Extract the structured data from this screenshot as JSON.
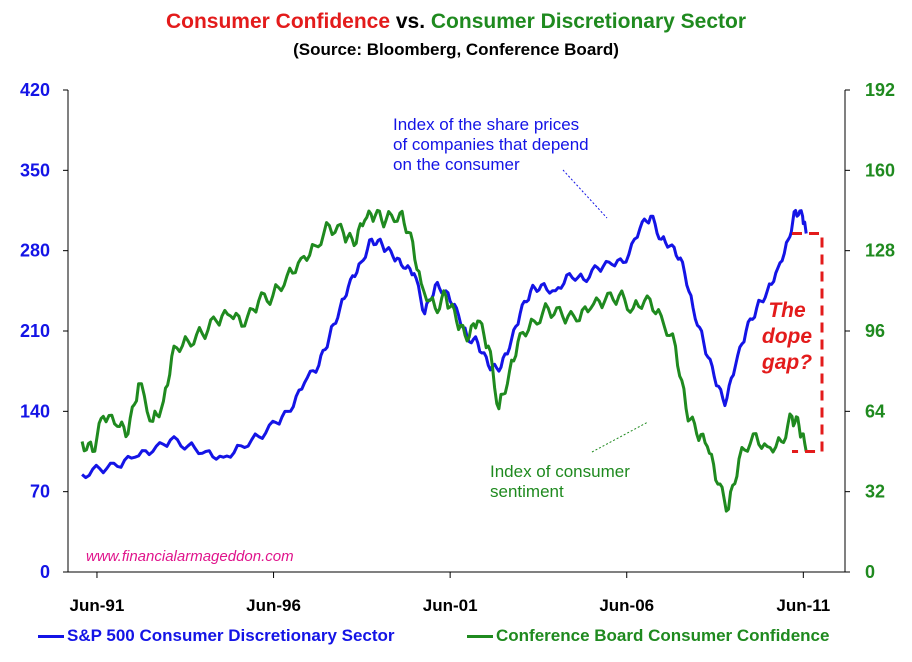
{
  "title": {
    "part1": "Consumer Confidence",
    "part2": " vs. ",
    "part3": "Consumer Discretionary Sector"
  },
  "subtitle": "(Source: Bloomberg, Conference Board)",
  "colors": {
    "blue": "#1414e6",
    "green": "#1f8a1f",
    "red": "#e31b1b",
    "pink": "#e0148c"
  },
  "annotations": {
    "blue_line1": "Index of the share prices",
    "blue_line2": "of companies that depend",
    "blue_line3": "on the consumer",
    "green_line1": "Index of consumer",
    "green_line2": "sentiment",
    "gap_line1": "The",
    "gap_line2": "dope",
    "gap_line3": "gap?"
  },
  "watermark": "www.financialarmageddon.com",
  "legend": {
    "blue": "S&P 500 Consumer Discretionary Sector",
    "green": "Conference Board Consumer Confidence"
  },
  "chart_data": {
    "type": "line",
    "x_unit": "year",
    "xlim": [
      1990.6,
      2012.6
    ],
    "x_ticks": [
      {
        "value": 1991.42,
        "label": "Jun-91"
      },
      {
        "value": 1996.42,
        "label": "Jun-96"
      },
      {
        "value": 2001.42,
        "label": "Jun-01"
      },
      {
        "value": 2006.42,
        "label": "Jun-06"
      },
      {
        "value": 2011.42,
        "label": "Jun-11"
      }
    ],
    "y_left": {
      "min": 0,
      "max": 420,
      "ticks": [
        0,
        70,
        140,
        210,
        280,
        350,
        420
      ]
    },
    "y_right": {
      "min": 0,
      "max": 192,
      "ticks": [
        0,
        32,
        64,
        96,
        128,
        160,
        192
      ]
    },
    "series": [
      {
        "name": "S&P 500 Consumer Discretionary Sector",
        "axis": "left",
        "color": "#1414e6",
        "x": [
          1991.0,
          1991.5,
          1992.0,
          1992.5,
          1993.0,
          1993.5,
          1994.0,
          1994.5,
          1995.0,
          1995.5,
          1996.0,
          1996.5,
          1996.9,
          1997.3,
          1997.7,
          1998.0,
          1998.3,
          1998.6,
          1998.9,
          1999.2,
          1999.5,
          1999.8,
          2000.1,
          2000.4,
          2000.7,
          2001.0,
          2001.3,
          2001.6,
          2001.9,
          2002.2,
          2002.5,
          2002.8,
          2003.1,
          2003.4,
          2003.7,
          2004.0,
          2004.4,
          2004.8,
          2005.2,
          2005.6,
          2006.0,
          2006.4,
          2006.8,
          2007.1,
          2007.4,
          2007.7,
          2008.0,
          2008.3,
          2008.6,
          2008.9,
          2009.2,
          2009.5,
          2009.8,
          2010.1,
          2010.4,
          2010.7,
          2011.0,
          2011.2,
          2011.4,
          2011.5
        ],
        "values": [
          85,
          90,
          92,
          100,
          105,
          115,
          110,
          105,
          100,
          110,
          118,
          130,
          140,
          165,
          180,
          205,
          230,
          255,
          270,
          290,
          285,
          275,
          265,
          260,
          225,
          250,
          245,
          230,
          205,
          200,
          180,
          175,
          195,
          225,
          245,
          250,
          245,
          260,
          255,
          265,
          268,
          270,
          300,
          310,
          290,
          285,
          270,
          230,
          200,
          170,
          145,
          180,
          210,
          230,
          245,
          265,
          290,
          315,
          310,
          295
        ]
      },
      {
        "name": "Conference Board Consumer Confidence",
        "axis": "right",
        "color": "#1f8a1f",
        "x": [
          1991.0,
          1991.3,
          1991.6,
          1992.0,
          1992.3,
          1992.6,
          1993.0,
          1993.3,
          1993.6,
          1994.0,
          1994.4,
          1994.8,
          1995.2,
          1995.6,
          1996.0,
          1996.4,
          1996.8,
          1997.2,
          1997.6,
          1998.0,
          1998.4,
          1998.7,
          1999.0,
          1999.3,
          1999.6,
          2000.0,
          2000.3,
          2000.6,
          2001.0,
          2001.3,
          2001.6,
          2001.9,
          2002.2,
          2002.5,
          2002.8,
          2003.1,
          2003.4,
          2003.8,
          2004.2,
          2004.6,
          2005.0,
          2005.4,
          2005.8,
          2006.2,
          2006.6,
          2007.0,
          2007.4,
          2007.8,
          2008.1,
          2008.4,
          2008.7,
          2009.0,
          2009.3,
          2009.6,
          2010.0,
          2010.4,
          2010.8,
          2011.1,
          2011.3,
          2011.5
        ],
        "values": [
          52,
          48,
          62,
          58,
          55,
          75,
          60,
          68,
          90,
          92,
          95,
          100,
          102,
          98,
          108,
          110,
          118,
          125,
          130,
          138,
          135,
          130,
          140,
          142,
          140,
          143,
          135,
          115,
          105,
          110,
          100,
          92,
          100,
          90,
          65,
          80,
          95,
          100,
          105,
          102,
          100,
          105,
          108,
          110,
          105,
          110,
          102,
          90,
          65,
          55,
          50,
          35,
          25,
          45,
          55,
          50,
          52,
          62,
          58,
          48
        ]
      }
    ]
  }
}
